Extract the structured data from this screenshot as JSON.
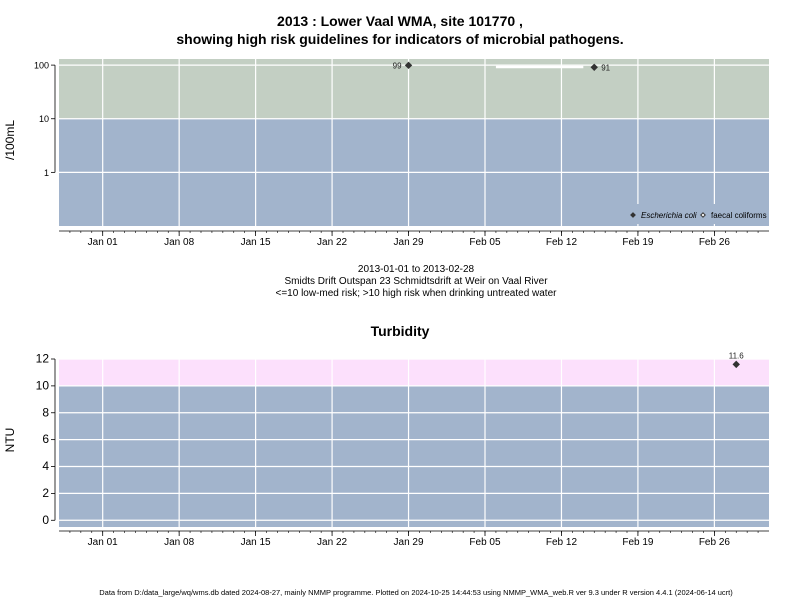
{
  "chart1": {
    "title_line1": "2013 : Lower Vaal WMA, site 101770 ,",
    "title_line2": "showing high risk guidelines for indicators of microbial pathogens.",
    "ylabel": "/100mL",
    "info_line1": "2013-01-01 to 2013-02-28",
    "info_line2": "Smidts Drift Outspan 23 Schmidtsdrift at Weir on Vaal River",
    "info_line3": "<=10 low-med risk; >10 high risk when drinking untreated water"
  },
  "chart2": {
    "title": "Turbidity",
    "ylabel": "NTU"
  },
  "footer": "Data from D:/data_large/wq/wms.db dated 2024-08-27, mainly NMMP programme. Plotted on 2024-10-25 14:44:53 using NMMP_WMA_web.R ver 9.3 under R version 4.4.1 (2024-06-14 ucrt)",
  "colors": {
    "low_risk": "#a2b4cc",
    "high_risk_ecoli": "#c3cfc3",
    "high_risk_turbidity": "#fce0fc",
    "grid": "#ffffff",
    "point": "#333333"
  },
  "chart_data": [
    {
      "type": "scatter",
      "title": "2013 : Lower Vaal WMA, site 101770 , showing high risk guidelines for indicators of microbial pathogens.",
      "ylabel": "/100mL",
      "yscale": "log",
      "ylim": [
        0.1,
        130
      ],
      "yticks": [
        1,
        10,
        100
      ],
      "xlim": [
        "2012-12-28",
        "2013-03-03"
      ],
      "xticks": [
        "Jan 01",
        "Jan 08",
        "Jan 15",
        "Jan 22",
        "Jan 29",
        "Feb 05",
        "Feb 12",
        "Feb 19",
        "Feb 26"
      ],
      "xtick_dates": [
        "2013-01-01",
        "2013-01-08",
        "2013-01-15",
        "2013-01-22",
        "2013-01-29",
        "2013-02-05",
        "2013-02-12",
        "2013-02-19",
        "2013-02-26"
      ],
      "bands": [
        {
          "from": 0.1,
          "to": 10,
          "color": "#a2b4cc"
        },
        {
          "from": 10,
          "to": 130,
          "color": "#c3cfc3"
        }
      ],
      "series": [
        {
          "name": "Escherichia coli",
          "marker": "filled-diamond",
          "points": [
            {
              "x": "2013-01-29",
              "y": 99
            },
            {
              "x": "2013-02-15",
              "y": 91
            }
          ]
        },
        {
          "name": "faecal coliforms",
          "marker": "open-diamond",
          "points": []
        }
      ],
      "annotations": [
        {
          "x": "2013-02-06",
          "x2": "2013-02-14",
          "y": 92,
          "type": "line"
        }
      ],
      "legend": "bottom-right",
      "grid": true
    },
    {
      "type": "scatter",
      "title": "Turbidity",
      "ylabel": "NTU",
      "ylim": [
        -0.5,
        12
      ],
      "yticks": [
        0,
        2,
        4,
        6,
        8,
        10,
        12
      ],
      "xlim": [
        "2012-12-28",
        "2013-03-03"
      ],
      "xticks": [
        "Jan 01",
        "Jan 08",
        "Jan 15",
        "Jan 22",
        "Jan 29",
        "Feb 05",
        "Feb 12",
        "Feb 19",
        "Feb 26"
      ],
      "xtick_dates": [
        "2013-01-01",
        "2013-01-08",
        "2013-01-15",
        "2013-01-22",
        "2013-01-29",
        "2013-02-05",
        "2013-02-12",
        "2013-02-19",
        "2013-02-26"
      ],
      "bands": [
        {
          "from": -0.5,
          "to": 10,
          "color": "#a2b4cc"
        },
        {
          "from": 10,
          "to": 12,
          "color": "#fce0fc"
        }
      ],
      "series": [
        {
          "name": "",
          "marker": "filled-diamond",
          "points": [
            {
              "x": "2013-02-28",
              "y": 11.6
            }
          ]
        }
      ],
      "grid": true
    }
  ]
}
